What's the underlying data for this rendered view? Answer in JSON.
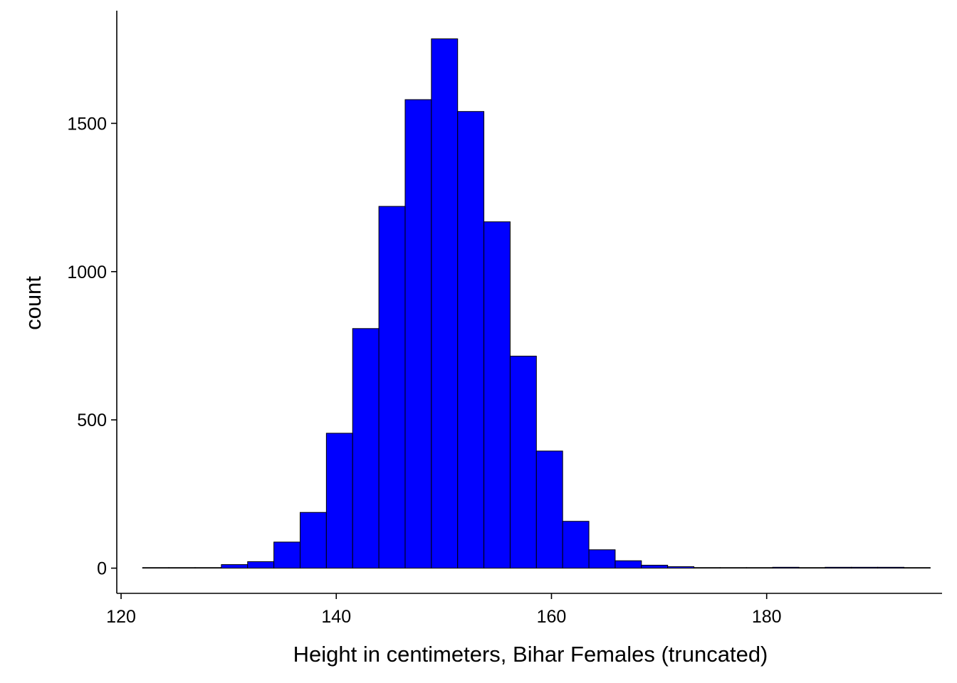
{
  "chart_data": {
    "type": "bar",
    "subtype": "histogram",
    "title": "",
    "xlabel": "Height in centimeters, Bihar Females (truncated)",
    "ylabel": "count",
    "xlim": [
      119.6,
      196.3
    ],
    "ylim": [
      -85,
      1880
    ],
    "xticks": [
      120,
      140,
      160,
      180
    ],
    "xtick_labels": [
      "120",
      "140",
      "160",
      "180"
    ],
    "yticks": [
      0,
      500,
      1000,
      1500
    ],
    "ytick_labels": [
      "0",
      "500",
      "1000",
      "1500"
    ],
    "bin_width": 2.44,
    "bins": [
      {
        "start": 122.0,
        "count": 2
      },
      {
        "start": 124.44,
        "count": 2
      },
      {
        "start": 126.88,
        "count": 2
      },
      {
        "start": 129.32,
        "count": 12
      },
      {
        "start": 131.76,
        "count": 22
      },
      {
        "start": 134.2,
        "count": 88
      },
      {
        "start": 136.64,
        "count": 188
      },
      {
        "start": 139.08,
        "count": 455
      },
      {
        "start": 141.52,
        "count": 808
      },
      {
        "start": 143.96,
        "count": 1220
      },
      {
        "start": 146.4,
        "count": 1580
      },
      {
        "start": 148.84,
        "count": 1785
      },
      {
        "start": 151.28,
        "count": 1540
      },
      {
        "start": 153.72,
        "count": 1168
      },
      {
        "start": 156.16,
        "count": 715
      },
      {
        "start": 158.6,
        "count": 395
      },
      {
        "start": 161.04,
        "count": 158
      },
      {
        "start": 163.48,
        "count": 62
      },
      {
        "start": 165.92,
        "count": 25
      },
      {
        "start": 168.36,
        "count": 10
      },
      {
        "start": 170.8,
        "count": 5
      },
      {
        "start": 173.24,
        "count": 2
      },
      {
        "start": 175.68,
        "count": 2
      },
      {
        "start": 178.12,
        "count": 2
      },
      {
        "start": 180.56,
        "count": 3
      },
      {
        "start": 183.0,
        "count": 2
      },
      {
        "start": 185.44,
        "count": 3
      },
      {
        "start": 187.88,
        "count": 3
      },
      {
        "start": 190.32,
        "count": 3
      },
      {
        "start": 192.76,
        "count": 2
      }
    ],
    "fill_color": "#0000ff",
    "stroke_color": "#000000",
    "grid": false,
    "legend": "none",
    "axis_color": "#000000"
  }
}
